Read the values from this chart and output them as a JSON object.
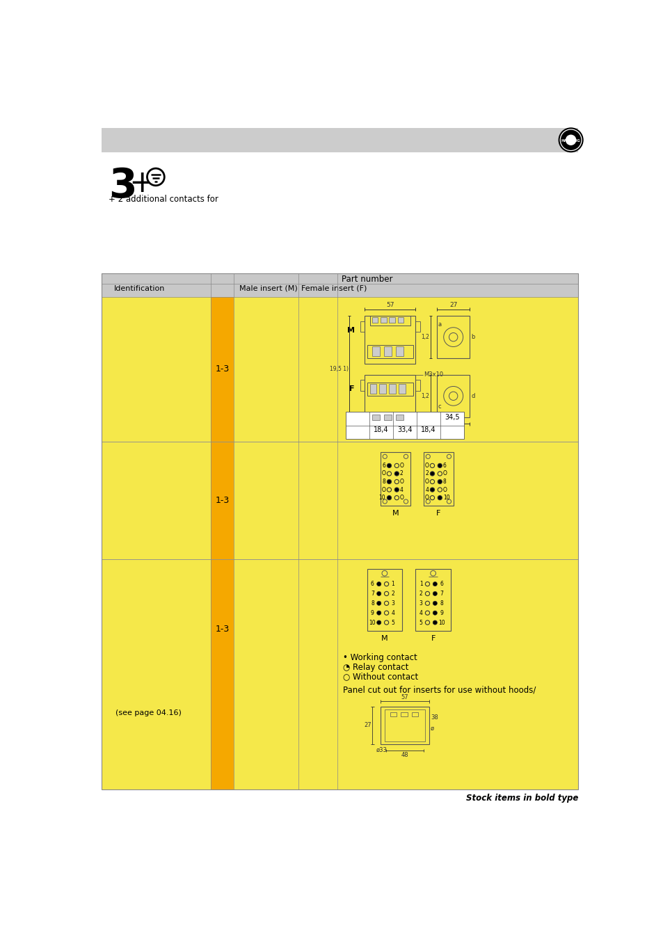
{
  "page_bg": "#ffffff",
  "header_bar_color": "#cccccc",
  "yellow_bg": "#f5e84a",
  "yellow_bg2": "#f0e040",
  "orange_col": "#f5a800",
  "table_header_bg": "#c8c8c8",
  "part_number_label": "Part number",
  "col_identification": "Identification",
  "col_male": "Male insert (M)",
  "col_female": "Female insert (F)",
  "row1_id": "1-3",
  "row2_id": "1-3",
  "row3_id": "1-3",
  "dim_row1": [
    "18,4",
    "33,4",
    "18,4"
  ],
  "dim_row2": "34,5",
  "legend_working": "• Working contact",
  "legend_relay": "◔ Relay contact",
  "legend_without": "○ Without contact",
  "panel_cutout_text": "Panel cut out for inserts for use without hoods/",
  "stock_items_text": "Stock items in bold type",
  "see_page": "(see page 04.16)",
  "subtitle": "+ 2 additional contacts for"
}
